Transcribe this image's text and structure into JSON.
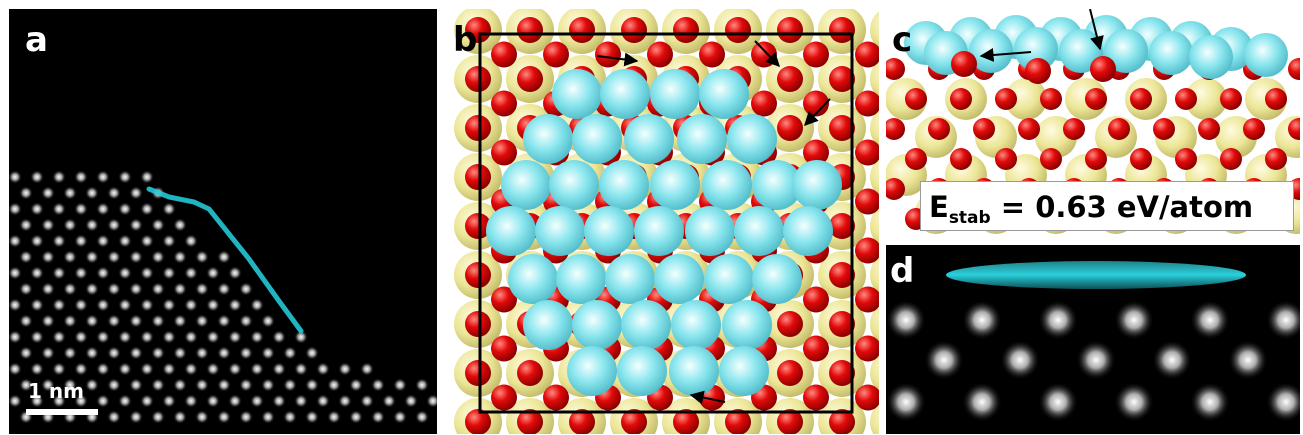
{
  "panels": {
    "a": {
      "label": "a",
      "scale_bar_text": "1 nm"
    },
    "b": {
      "label": "b"
    },
    "c": {
      "label": "c",
      "energy_label": {
        "symbol": "E",
        "subscript": "stab",
        "rest": " = 0.63 eV/atom"
      }
    },
    "d": {
      "label": "d"
    }
  },
  "colors": {
    "cation_atom": "#e8e49a",
    "oxygen_atom": "#e00000",
    "adsorbate_atom": "#7fe3ec",
    "stem_highlight": "#23c8d6",
    "arrow": "#000000"
  }
}
